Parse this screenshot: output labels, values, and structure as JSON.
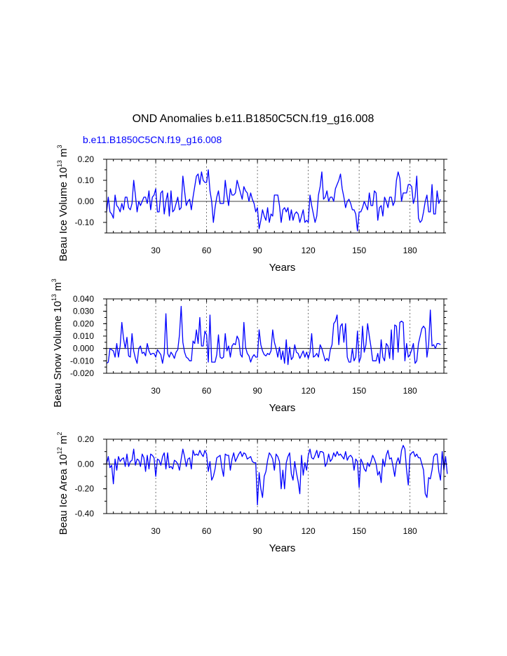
{
  "title": "OND Anomalies b.e11.B1850C5CN.f19_g16.008",
  "subtitle": "b.e11.B1850C5CN.f19_g16.008",
  "colors": {
    "line": "#0000ff",
    "subtitle": "#0000ff",
    "axes": "#000000",
    "reflines": "#555555"
  },
  "chart_data": [
    {
      "type": "line",
      "ylabel": "Beau Ice Volume 10^13 m^3",
      "ylabel_parts": {
        "base": "Beau Ice Volume 10",
        "exp1": "13",
        "mid": " m",
        "exp2": "3"
      },
      "xlabel": "Years",
      "xlim": [
        1,
        200
      ],
      "ylim": [
        -0.15,
        0.2
      ],
      "x_ticks": [
        30,
        60,
        90,
        120,
        150,
        180
      ],
      "x_tick_labels": [
        "30",
        "60",
        "90",
        "120",
        "150",
        "180"
      ],
      "y_ticks": [
        -0.1,
        0.0,
        0.1,
        0.2
      ],
      "y_tick_labels": [
        "-0.10",
        "0.00",
        "0.10",
        "0.20"
      ],
      "reference_x": [
        30,
        60,
        90,
        120,
        150,
        180
      ],
      "series": [
        {
          "name": "Beau Ice Volume",
          "x_start": 1,
          "values": [
            -0.05,
            0.02,
            -0.05,
            -0.06,
            -0.08,
            0.03,
            -0.02,
            -0.03,
            -0.05,
            -0.01,
            -0.04,
            0.02,
            0.02,
            -0.03,
            -0.04,
            -0.01,
            0.1,
            0.03,
            -0.05,
            0.0,
            -0.02,
            0.0,
            0.02,
            0.02,
            -0.01,
            0.05,
            -0.04,
            0.02,
            0.03,
            0.06,
            -0.05,
            -0.05,
            0.04,
            0.05,
            -0.06,
            0.0,
            0.04,
            -0.07,
            0.05,
            -0.05,
            -0.04,
            -0.01,
            0.02,
            -0.04,
            -0.03,
            0.12,
            0.05,
            -0.02,
            0.0,
            0.01,
            -0.04,
            0.02,
            0.07,
            0.12,
            0.13,
            0.08,
            0.14,
            0.1,
            0.09,
            0.09,
            0.15,
            0.05,
            0.0,
            -0.1,
            -0.03,
            0.02,
            0.05,
            -0.01,
            -0.01,
            -0.01,
            0.1,
            0.03,
            -0.02,
            0.06,
            0.03,
            0.03,
            0.04,
            0.1,
            0.07,
            0.04,
            0.01,
            0.07,
            0.05,
            0.04,
            0.0,
            0.04,
            0.01,
            -0.01,
            -0.05,
            -0.03,
            -0.13,
            -0.09,
            -0.04,
            -0.07,
            -0.09,
            -0.03,
            -0.1,
            -0.06,
            -0.07,
            0.03,
            0.03,
            0.03,
            -0.02,
            -0.1,
            -0.04,
            -0.03,
            -0.05,
            -0.03,
            -0.09,
            -0.04,
            -0.09,
            -0.06,
            -0.05,
            -0.06,
            -0.1,
            -0.07,
            -0.04,
            -0.1,
            -0.09,
            -0.1,
            0.03,
            -0.02,
            -0.06,
            -0.1,
            -0.07,
            0.03,
            0.07,
            0.14,
            0.01,
            0.02,
            0.05,
            0.0,
            0.02,
            0.02,
            0.0,
            0.06,
            0.08,
            0.1,
            0.13,
            0.06,
            0.02,
            -0.03,
            0.0,
            0.01,
            -0.01,
            -0.04,
            -0.04,
            -0.06,
            -0.14,
            -0.05,
            -0.05,
            -0.03,
            0.0,
            -0.02,
            -0.04,
            0.04,
            -0.02,
            -0.02,
            0.05,
            0.04,
            -0.09,
            -0.03,
            -0.02,
            -0.07,
            0.02,
            0.0,
            -0.03,
            0.02,
            0.02,
            -0.02,
            0.0,
            0.1,
            0.14,
            0.11,
            0.0,
            0.04,
            0.04,
            0.04,
            0.08,
            0.08,
            0.07,
            -0.01,
            0.02,
            0.12,
            -0.08,
            -0.1,
            -0.09,
            -0.05,
            0.0,
            0.03,
            -0.05,
            -0.05,
            0.08,
            -0.06,
            -0.06,
            0.05,
            -0.01,
            0.01
          ]
        }
      ]
    },
    {
      "type": "line",
      "ylabel": "Beau Snow Volume 10^13 m^3",
      "ylabel_parts": {
        "base": "Beau Snow Volume 10",
        "exp1": "13",
        "mid": " m",
        "exp2": "3"
      },
      "xlabel": "Years",
      "xlim": [
        1,
        200
      ],
      "ylim": [
        -0.02,
        0.04
      ],
      "x_ticks": [
        30,
        60,
        90,
        120,
        150,
        180
      ],
      "x_tick_labels": [
        "30",
        "60",
        "90",
        "120",
        "150",
        "180"
      ],
      "y_ticks": [
        -0.02,
        -0.01,
        0.0,
        0.01,
        0.02,
        0.03,
        0.04
      ],
      "y_tick_labels": [
        "-0.020",
        "-0.010",
        "0.000",
        "0.010",
        "0.020",
        "0.030",
        "0.040"
      ],
      "reference_x": [
        30,
        60,
        90,
        120,
        150,
        180
      ],
      "series": [
        {
          "name": "Beau Snow Volume",
          "x_start": 1,
          "values": [
            -0.012,
            -0.011,
            0.0,
            -0.001,
            -0.002,
            -0.007,
            0.004,
            -0.007,
            0.002,
            0.021,
            0.008,
            0.0,
            0.009,
            -0.006,
            -0.007,
            0.012,
            -0.002,
            -0.008,
            -0.012,
            0.0,
            0.002,
            -0.004,
            -0.003,
            -0.006,
            0.004,
            -0.002,
            -0.005,
            -0.004,
            -0.004,
            -0.007,
            -0.001,
            -0.003,
            -0.005,
            -0.012,
            -0.004,
            0.028,
            -0.004,
            -0.007,
            -0.003,
            -0.005,
            -0.008,
            -0.003,
            -0.001,
            0.011,
            0.034,
            0.005,
            -0.003,
            -0.007,
            -0.008,
            -0.01,
            -0.01,
            0.006,
            0.004,
            0.015,
            0.004,
            0.025,
            0.002,
            0.002,
            0.014,
            0.011,
            -0.011,
            0.027,
            -0.011,
            -0.011,
            -0.011,
            -0.005,
            0.011,
            -0.007,
            -0.008,
            -0.007,
            0.012,
            -0.002,
            0.002,
            -0.007,
            0.002,
            0.004,
            0.003,
            0.01,
            0.007,
            -0.005,
            -0.007,
            0.021,
            0.001,
            -0.004,
            -0.006,
            -0.011,
            -0.007,
            -0.005,
            -0.007,
            -0.007,
            0.015,
            0.003,
            -0.002,
            -0.005,
            -0.006,
            -0.004,
            -0.005,
            -0.002,
            0.015,
            0.005,
            0.0,
            -0.007,
            0.001,
            -0.009,
            -0.002,
            -0.012,
            0.007,
            -0.013,
            0.001,
            -0.009,
            -0.007,
            0.003,
            -0.003,
            -0.004,
            -0.008,
            -0.005,
            -0.002,
            -0.007,
            -0.003,
            -0.008,
            -0.003,
            0.012,
            -0.007,
            -0.006,
            -0.004,
            -0.007,
            0.003,
            0.0,
            -0.005,
            -0.01,
            -0.008,
            -0.01,
            -0.001,
            0.003,
            0.02,
            0.022,
            0.027,
            0.003,
            0.018,
            0.02,
            0.005,
            0.02,
            -0.007,
            -0.011,
            -0.011,
            0.0,
            -0.01,
            -0.007,
            0.014,
            -0.011,
            -0.007,
            0.018,
            -0.003,
            0.003,
            0.02,
            0.01,
            0.001,
            -0.01,
            -0.01,
            -0.01,
            -0.004,
            -0.012,
            0.007,
            -0.007,
            -0.01,
            0.004,
            0.002,
            -0.008,
            0.015,
            -0.009,
            0.019,
            0.018,
            -0.003,
            0.021,
            0.022,
            0.021,
            -0.01,
            0.004,
            -0.007,
            -0.005,
            -0.001,
            0.004,
            -0.012,
            -0.01,
            0.004,
            0.01,
            0.016,
            0.018,
            0.016,
            -0.007,
            0.003,
            0.031,
            0.002,
            0.003,
            0.0,
            0.004,
            0.004,
            0.003
          ]
        }
      ]
    },
    {
      "type": "line",
      "ylabel": "Beau Ice Area 10^12 m^2",
      "ylabel_parts": {
        "base": "Beau Ice Area 10",
        "exp1": "12",
        "mid": " m",
        "exp2": "2"
      },
      "xlabel": "Years",
      "xlim": [
        1,
        200
      ],
      "ylim": [
        -0.4,
        0.2
      ],
      "x_ticks": [
        30,
        60,
        90,
        120,
        150,
        180
      ],
      "x_tick_labels": [
        "30",
        "60",
        "90",
        "120",
        "150",
        "180"
      ],
      "y_ticks": [
        -0.4,
        -0.2,
        0.0,
        0.2
      ],
      "y_tick_labels": [
        "-0.40",
        "-0.20",
        "0.00",
        "0.20"
      ],
      "reference_x": [
        30,
        60,
        90,
        120,
        150,
        180
      ],
      "series": [
        {
          "name": "Beau Ice Area",
          "x_start": 1,
          "values": [
            0.0,
            0.06,
            -0.03,
            -0.01,
            -0.16,
            0.04,
            -0.05,
            0.06,
            0.02,
            0.04,
            0.05,
            -0.02,
            0.08,
            -0.02,
            0.02,
            0.03,
            0.12,
            -0.01,
            0.04,
            0.03,
            -0.02,
            0.08,
            0.05,
            -0.06,
            0.07,
            -0.04,
            0.08,
            0.07,
            0.05,
            -0.1,
            0.04,
            0.03,
            -0.01,
            0.06,
            0.09,
            -0.04,
            0.09,
            -0.03,
            -0.02,
            -0.04,
            0.03,
            0.02,
            0.0,
            -0.05,
            0.04,
            0.12,
            0.06,
            -0.02,
            0.04,
            0.05,
            -0.04,
            0.11,
            0.07,
            0.08,
            0.07,
            0.11,
            0.08,
            0.06,
            0.11,
            0.08,
            -0.06,
            0.02,
            -0.13,
            -0.1,
            -0.04,
            0.05,
            0.06,
            0.07,
            -0.03,
            -0.1,
            0.08,
            0.07,
            0.07,
            -0.05,
            0.04,
            0.09,
            0.02,
            0.05,
            0.08,
            0.1,
            0.06,
            0.09,
            0.08,
            0.04,
            0.05,
            0.06,
            0.02,
            0.01,
            0.01,
            -0.33,
            -0.07,
            -0.2,
            -0.27,
            -0.1,
            -0.06,
            0.03,
            0.09,
            0.07,
            0.04,
            -0.05,
            0.08,
            0.06,
            0.02,
            -0.2,
            -0.05,
            -0.2,
            0.01,
            0.06,
            0.09,
            -0.08,
            -0.13,
            0.02,
            -0.07,
            -0.14,
            -0.24,
            0.07,
            -0.09,
            0.01,
            -0.05,
            0.07,
            0.12,
            0.05,
            0.04,
            0.07,
            0.11,
            0.05,
            0.1,
            0.1,
            0.09,
            -0.02,
            0.01,
            0.08,
            0.02,
            0.04,
            0.09,
            0.06,
            0.1,
            0.07,
            0.08,
            0.06,
            0.04,
            0.1,
            0.03,
            0.06,
            0.07,
            0.05,
            -0.05,
            0.04,
            0.02,
            -0.19,
            0.04,
            0.01,
            -0.04,
            -0.06,
            0.01,
            -0.02,
            0.02,
            0.07,
            0.04,
            0.0,
            -0.09,
            -0.06,
            -0.15,
            0.04,
            -0.02,
            0.07,
            0.11,
            0.04,
            0.05,
            -0.02,
            -0.1,
            0.01,
            0.05,
            0.0,
            0.11,
            0.15,
            0.12,
            -0.05,
            -0.17,
            0.07,
            0.09,
            0.1,
            0.06,
            0.08,
            0.05,
            0.05,
            0.0,
            -0.05,
            -0.24,
            -0.27,
            -0.11,
            -0.12,
            -0.05,
            0.06,
            0.08,
            0.08,
            -0.06,
            -0.13,
            0.1,
            -0.05,
            0.06,
            -0.08
          ]
        }
      ]
    }
  ]
}
